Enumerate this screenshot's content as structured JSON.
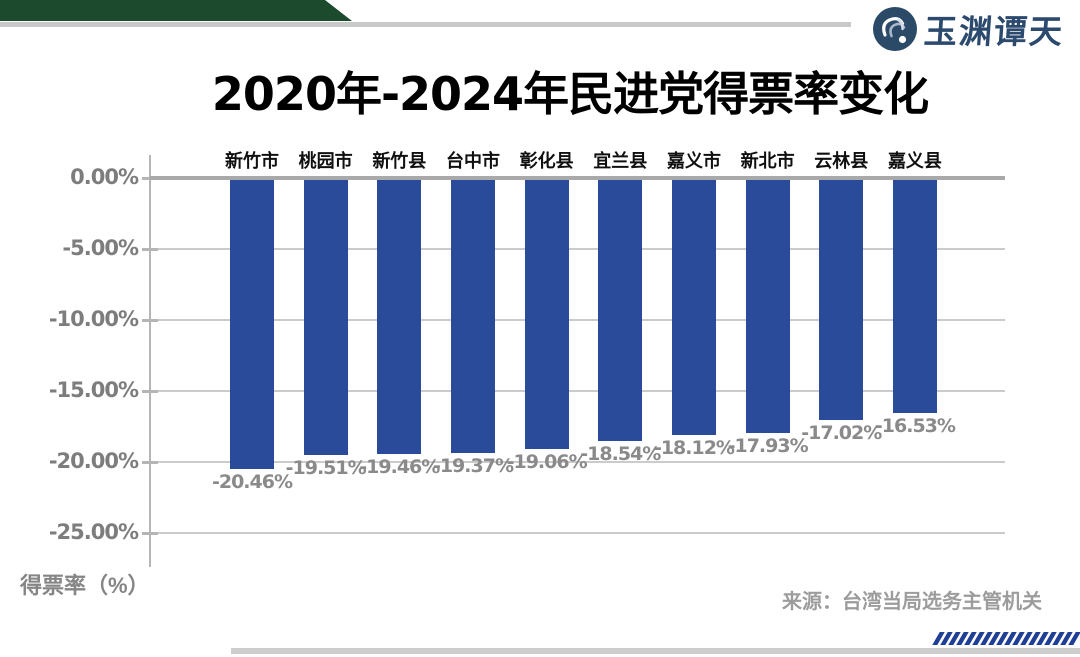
{
  "brand": {
    "logo_text": "玉渊谭天"
  },
  "chart_data": {
    "type": "bar",
    "title": "2020年-2024年民进党得票率变化",
    "categories": [
      "新竹市",
      "桃园市",
      "新竹县",
      "台中市",
      "彰化县",
      "宜兰县",
      "嘉义市",
      "新北市",
      "云林县",
      "嘉义县"
    ],
    "values": [
      -20.46,
      -19.51,
      -19.46,
      -19.37,
      -19.06,
      -18.54,
      -18.12,
      -17.93,
      -17.02,
      -16.53
    ],
    "data_labels": [
      "-20.46%",
      "-19.51%",
      "-19.46%",
      "-19.37%",
      "-19.06%",
      "-18.54%",
      "-18.12%",
      "-17.93%",
      "-17.02%",
      "-16.53%"
    ],
    "ylabel": "得票率（%）",
    "xlabel": "",
    "ylim": [
      -27.5,
      0
    ],
    "yticks": [
      0,
      -5,
      -10,
      -15,
      -20,
      -25
    ],
    "ytick_labels": [
      "0.00%",
      "-5.00%",
      "-10.00%",
      "-15.00%",
      "-20.00%",
      "-25.00%"
    ],
    "grid": true,
    "legend": "none",
    "bar_color": "#2a4b99",
    "category_label_position": "above-zero-line",
    "value_label_position": "below-bar"
  },
  "footer": {
    "source": "来源：台湾当局选务主管机关",
    "slash_count": 18
  },
  "colors": {
    "bar_blue": "#2a4b99",
    "slash_blue": "#1f3f94",
    "banner_green": "#1c4a2d",
    "logo_navy": "#2c4a6e",
    "grid_gray": "#cbcbcb",
    "zero_line_gray": "#a9a9a9",
    "label_gray": "#8a8a8a"
  }
}
